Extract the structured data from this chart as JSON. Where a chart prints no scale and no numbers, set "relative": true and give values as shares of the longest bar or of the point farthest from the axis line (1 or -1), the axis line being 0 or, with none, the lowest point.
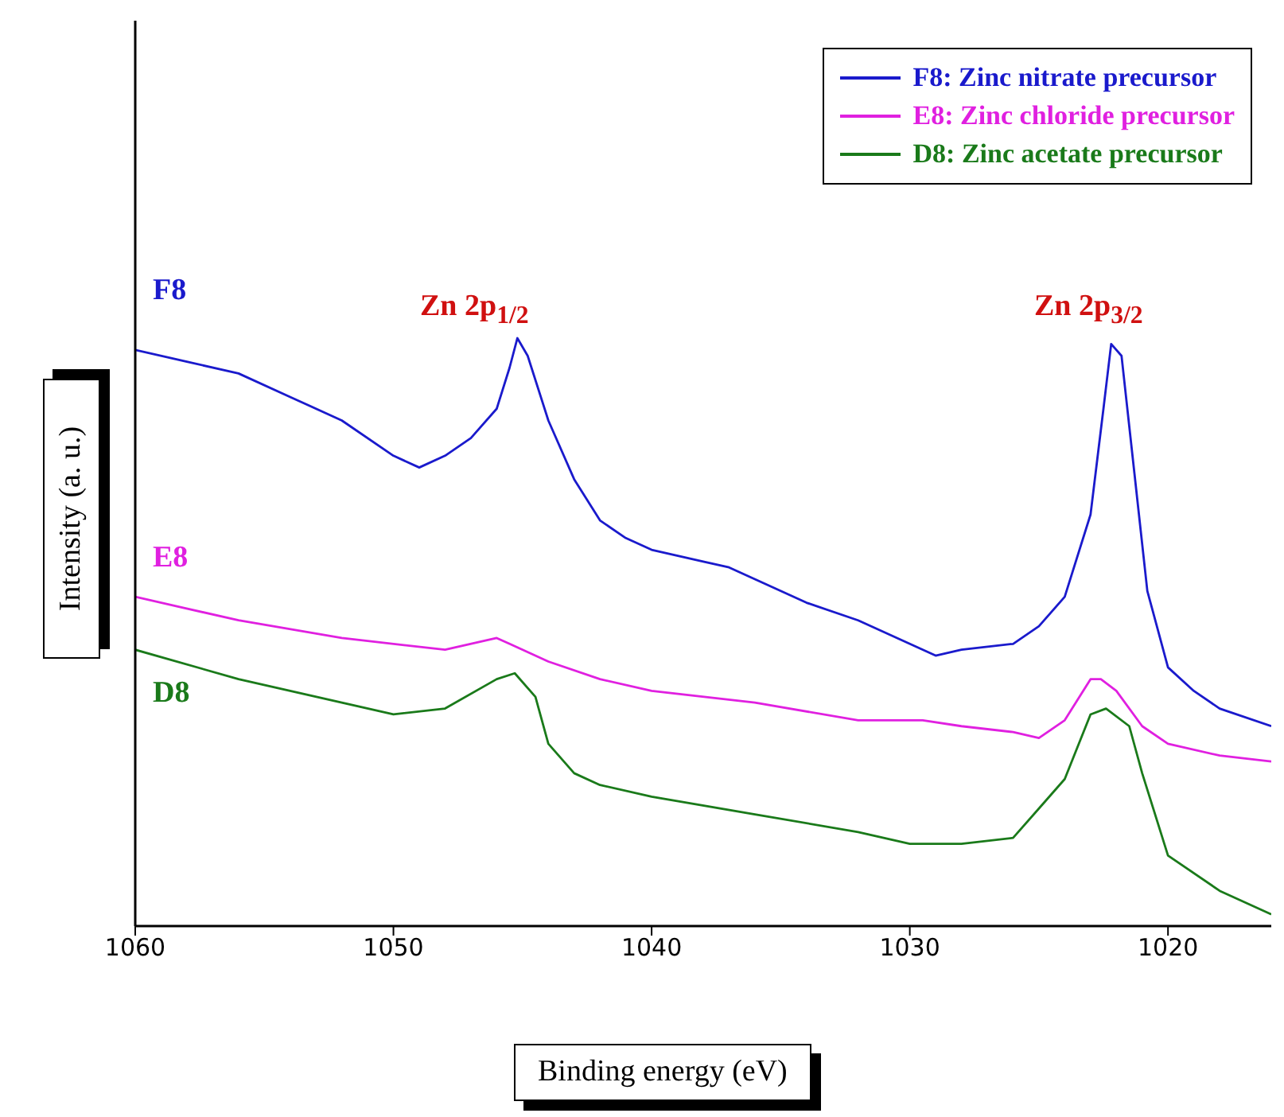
{
  "chart_data": {
    "type": "line",
    "relative": true,
    "xlabel": "Binding energy (eV)",
    "ylabel": "Intensity (a. u.)",
    "xlim": [
      1060,
      1016
    ],
    "xticks": [
      1060,
      1050,
      1040,
      1030,
      1020
    ],
    "legend": "top right",
    "marker": "none",
    "line_style": "solid",
    "series": [
      {
        "name": "F8: Zinc nitrate precursor",
        "color": "#1a1acc",
        "x": [
          1060,
          1058,
          1056,
          1054,
          1052,
          1050,
          1049,
          1048,
          1047,
          1046,
          1045.5,
          1045.2,
          1044.8,
          1044,
          1043,
          1042,
          1041,
          1040,
          1038,
          1037,
          1036,
          1034,
          1032,
          1030,
          1029,
          1028,
          1026,
          1025,
          1024,
          1023,
          1022.5,
          1022.2,
          1021.8,
          1021.3,
          1020.8,
          1020,
          1019,
          1018,
          1016
        ],
        "values": [
          0.98,
          0.96,
          0.94,
          0.9,
          0.86,
          0.8,
          0.78,
          0.8,
          0.83,
          0.88,
          0.95,
          1,
          0.97,
          0.86,
          0.76,
          0.69,
          0.66,
          0.64,
          0.62,
          0.61,
          0.59,
          0.55,
          0.52,
          0.48,
          0.46,
          0.47,
          0.48,
          0.51,
          0.56,
          0.7,
          0.88,
          0.99,
          0.97,
          0.77,
          0.57,
          0.44,
          0.4,
          0.37,
          0.34
        ]
      },
      {
        "name": "E8: Zinc chloride precursor",
        "color": "#e020e0",
        "x": [
          1060,
          1056,
          1052,
          1048,
          1046,
          1045.5,
          1044,
          1042,
          1040,
          1036,
          1032,
          1030,
          1029.5,
          1028,
          1026,
          1025,
          1024,
          1023,
          1022.6,
          1022,
          1021,
          1020,
          1018,
          1016
        ],
        "values": [
          0.56,
          0.52,
          0.49,
          0.47,
          0.49,
          0.48,
          0.45,
          0.42,
          0.4,
          0.38,
          0.35,
          0.35,
          0.35,
          0.34,
          0.33,
          0.32,
          0.35,
          0.42,
          0.42,
          0.4,
          0.34,
          0.31,
          0.29,
          0.28
        ]
      },
      {
        "name": "D8: Zinc acetate precursor",
        "color": "#1a7a1a",
        "x": [
          1060,
          1056,
          1052,
          1050,
          1048,
          1046,
          1045.3,
          1044.5,
          1044,
          1043,
          1042,
          1040,
          1036,
          1032,
          1030,
          1028,
          1026,
          1025,
          1024,
          1023,
          1022.4,
          1021.5,
          1021,
          1020,
          1018,
          1016
        ],
        "values": [
          0.47,
          0.42,
          0.38,
          0.36,
          0.37,
          0.42,
          0.43,
          0.39,
          0.31,
          0.26,
          0.24,
          0.22,
          0.19,
          0.16,
          0.14,
          0.14,
          0.15,
          0.2,
          0.25,
          0.36,
          0.37,
          0.34,
          0.26,
          0.12,
          0.06,
          0.02
        ]
      }
    ],
    "annotations": [
      "F8",
      "E8",
      "D8",
      "Zn 2p$_{1/2}$",
      "Zn 2p$_{3/2}$"
    ]
  }
}
